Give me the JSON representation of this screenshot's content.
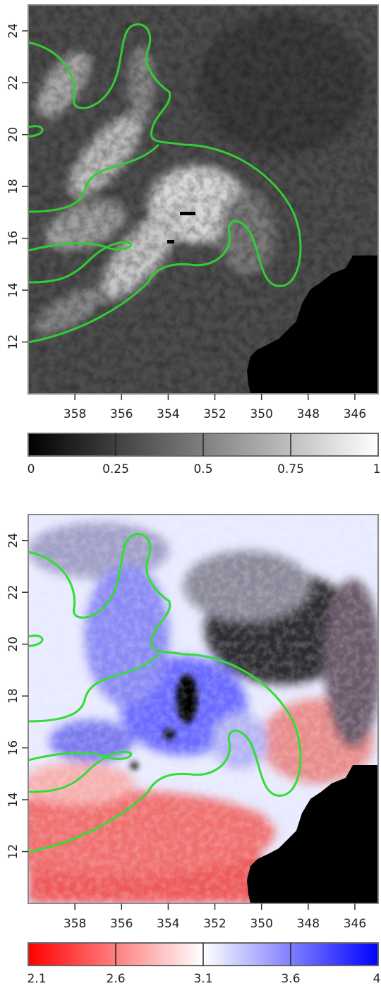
{
  "chart_data": [
    {
      "type": "heatmap",
      "title": "",
      "xlabel": "",
      "ylabel": "",
      "xlim": [
        360,
        345
      ],
      "ylim": [
        10,
        25
      ],
      "x_ticks": [
        358,
        356,
        354,
        352,
        350,
        348,
        346
      ],
      "y_ticks": [
        12,
        14,
        16,
        18,
        20,
        22,
        24
      ],
      "colormap": "grayscale",
      "colorbar": {
        "ticks": [
          "0",
          "0.25",
          "0.5",
          "0.75",
          "1"
        ],
        "range": [
          0,
          1
        ],
        "colors": [
          "#000000",
          "#ffffff"
        ]
      },
      "contour_color": "#33cc33",
      "masked_color": "#000000"
    },
    {
      "type": "heatmap",
      "title": "",
      "xlabel": "",
      "ylabel": "",
      "xlim": [
        360,
        345
      ],
      "ylim": [
        10,
        25
      ],
      "x_ticks": [
        358,
        356,
        354,
        352,
        350,
        348,
        346
      ],
      "y_ticks": [
        12,
        14,
        16,
        18,
        20,
        22,
        24
      ],
      "colormap": "red-white-blue",
      "colorbar": {
        "ticks": [
          "2.1",
          "2.6",
          "3.1",
          "3.6",
          "4"
        ],
        "range": [
          2.1,
          4
        ],
        "colors": [
          "#ff0000",
          "#ffffff",
          "#0000ff"
        ]
      },
      "contour_color": "#33cc33",
      "masked_color": "#000000"
    }
  ]
}
